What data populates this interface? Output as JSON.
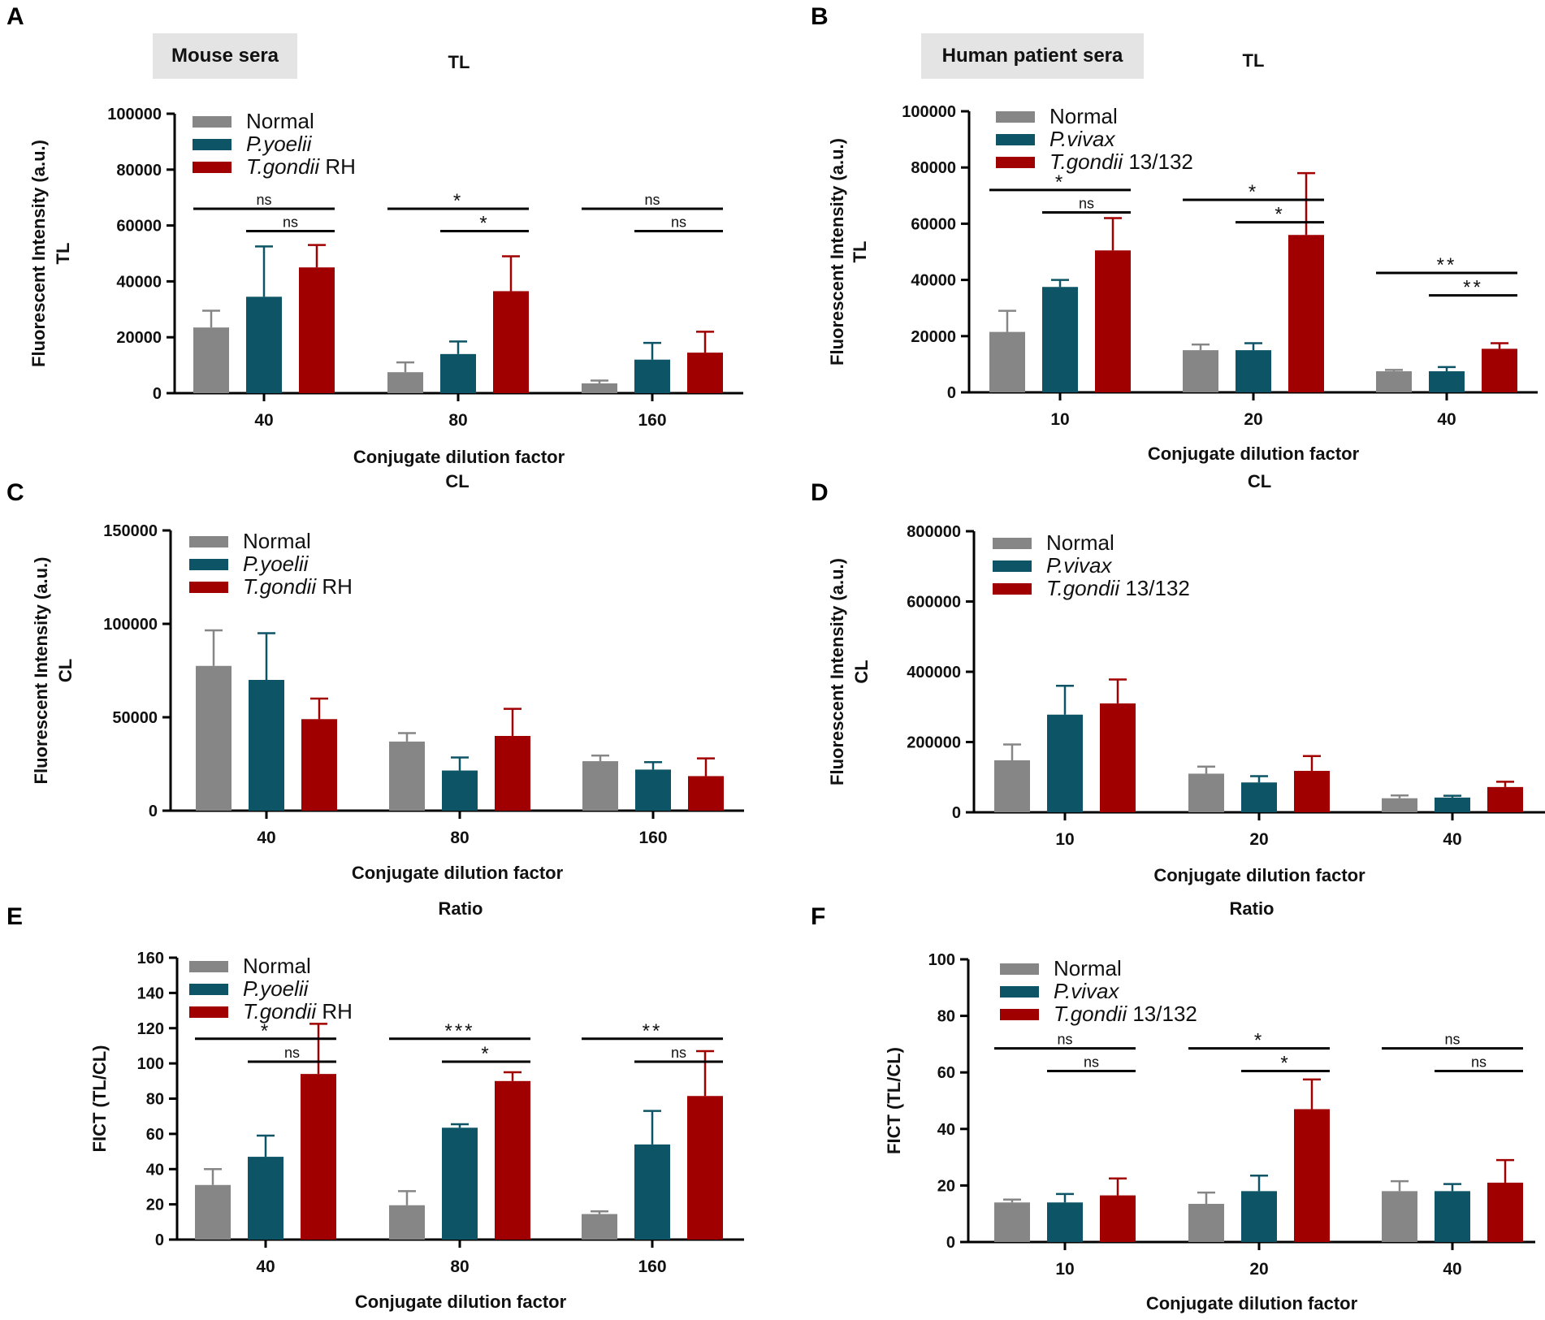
{
  "figure": {
    "group_labels": {
      "mouse": "Mouse sera",
      "human": "Human patient sera"
    }
  },
  "colors": {
    "normal": "#868686",
    "group2": "#0d5566",
    "group3": "#a00000",
    "axis": "#000000"
  },
  "chart_data": [
    {
      "panel": "A",
      "type": "bar",
      "title": "TL",
      "xlabel": "Conjugate dilution factor",
      "ylabel_line1": "Fluorescent Intensity (a.u.)",
      "ylabel_line2": "TL",
      "ylim": [
        0,
        100000
      ],
      "yticks": [
        0,
        20000,
        40000,
        60000,
        80000,
        100000
      ],
      "ytick_labels": [
        "0",
        "20000",
        "40000",
        "60000",
        "80000",
        "100000"
      ],
      "categories": [
        "40",
        "80",
        "160"
      ],
      "legend": [
        {
          "italic": "",
          "normal": "Normal"
        },
        {
          "italic": "P.yoelii",
          "normal": ""
        },
        {
          "italic": "T.gondii",
          "normal": " RH"
        }
      ],
      "series": [
        {
          "name": "Normal",
          "values": [
            23500,
            7500,
            3500
          ],
          "errors": [
            6000,
            3500,
            1000
          ]
        },
        {
          "name": "P.yoelii",
          "values": [
            34500,
            14000,
            12000
          ],
          "errors": [
            18000,
            4500,
            6000
          ]
        },
        {
          "name": "T.gondii RH",
          "values": [
            45000,
            36500,
            14500
          ],
          "errors": [
            8000,
            12500,
            7500
          ]
        }
      ],
      "significance": [
        {
          "cat": 0,
          "from": 0,
          "to": 2,
          "y": 66000,
          "label": "ns"
        },
        {
          "cat": 0,
          "from": 1,
          "to": 2,
          "y": 58000,
          "label": "ns"
        },
        {
          "cat": 1,
          "from": 0,
          "to": 2,
          "y": 66000,
          "label": "*"
        },
        {
          "cat": 1,
          "from": 1,
          "to": 2,
          "y": 58000,
          "label": "*"
        },
        {
          "cat": 2,
          "from": 0,
          "to": 2,
          "y": 66000,
          "label": "ns"
        },
        {
          "cat": 2,
          "from": 1,
          "to": 2,
          "y": 58000,
          "label": "ns"
        }
      ]
    },
    {
      "panel": "B",
      "type": "bar",
      "title": "TL",
      "xlabel": "Conjugate dilution factor",
      "ylabel_line1": "Fluorescent Intensity (a.u.)",
      "ylabel_line2": "TL",
      "ylim": [
        0,
        100000
      ],
      "yticks": [
        0,
        20000,
        40000,
        60000,
        80000,
        100000
      ],
      "ytick_labels": [
        "0",
        "20000",
        "40000",
        "60000",
        "80000",
        "100000"
      ],
      "categories": [
        "10",
        "20",
        "40"
      ],
      "legend": [
        {
          "italic": "",
          "normal": "Normal"
        },
        {
          "italic": "P.vivax",
          "normal": ""
        },
        {
          "italic": "T.gondii",
          "normal": " 13/132"
        }
      ],
      "series": [
        {
          "name": "Normal",
          "values": [
            21500,
            15000,
            7500
          ],
          "errors": [
            7500,
            2000,
            500
          ]
        },
        {
          "name": "P.vivax",
          "values": [
            37500,
            15000,
            7500
          ],
          "errors": [
            2500,
            2500,
            1500
          ]
        },
        {
          "name": "T.gondii 13/132",
          "values": [
            50500,
            56000,
            15500
          ],
          "errors": [
            11500,
            22000,
            2000
          ]
        }
      ],
      "significance": [
        {
          "cat": 0,
          "from": 0,
          "to": 2,
          "y": 72000,
          "label": "*"
        },
        {
          "cat": 0,
          "from": 1,
          "to": 2,
          "y": 64000,
          "label": "ns"
        },
        {
          "cat": 1,
          "from": 0,
          "to": 2,
          "y": 68500,
          "label": "*"
        },
        {
          "cat": 1,
          "from": 1,
          "to": 2,
          "y": 60500,
          "label": "*"
        },
        {
          "cat": 2,
          "from": 0,
          "to": 2,
          "y": 42500,
          "label": "**"
        },
        {
          "cat": 2,
          "from": 1,
          "to": 2,
          "y": 34500,
          "label": "**"
        }
      ]
    },
    {
      "panel": "C",
      "type": "bar",
      "title": "CL",
      "xlabel": "Conjugate dilution factor",
      "ylabel_line1": "Fluorescent Intensity (a.u.)",
      "ylabel_line2": "CL",
      "ylim": [
        0,
        150000
      ],
      "yticks": [
        0,
        50000,
        100000,
        150000
      ],
      "ytick_labels": [
        "0",
        "50000",
        "100000",
        "150000"
      ],
      "categories": [
        "40",
        "80",
        "160"
      ],
      "legend": [
        {
          "italic": "",
          "normal": "Normal"
        },
        {
          "italic": "P.yoelii",
          "normal": ""
        },
        {
          "italic": "T.gondii",
          "normal": " RH"
        }
      ],
      "series": [
        {
          "name": "Normal",
          "values": [
            77500,
            37000,
            26500
          ],
          "errors": [
            19000,
            4500,
            3000
          ]
        },
        {
          "name": "P.yoelii",
          "values": [
            70000,
            21500,
            22000
          ],
          "errors": [
            25000,
            7000,
            4000
          ]
        },
        {
          "name": "T.gondii RH",
          "values": [
            49000,
            40000,
            18500
          ],
          "errors": [
            11000,
            14500,
            9500
          ]
        }
      ],
      "significance": []
    },
    {
      "panel": "D",
      "type": "bar",
      "title": "CL",
      "xlabel": "Conjugate dilution factor",
      "ylabel_line1": "Fluorescent Intensity (a.u.)",
      "ylabel_line2": "CL",
      "ylim": [
        0,
        800000
      ],
      "yticks": [
        0,
        200000,
        400000,
        600000,
        800000
      ],
      "ytick_labels": [
        "0",
        "200000",
        "400000",
        "600000",
        "800000"
      ],
      "categories": [
        "10",
        "20",
        "40"
      ],
      "legend": [
        {
          "italic": "",
          "normal": "Normal"
        },
        {
          "italic": "P.vivax",
          "normal": ""
        },
        {
          "italic": "T.gondii",
          "normal": " 13/132"
        }
      ],
      "series": [
        {
          "name": "Normal",
          "values": [
            148000,
            110000,
            40000
          ],
          "errors": [
            45000,
            20000,
            8000
          ]
        },
        {
          "name": "P.vivax",
          "values": [
            278000,
            85000,
            42000
          ],
          "errors": [
            82000,
            18000,
            5000
          ]
        },
        {
          "name": "T.gondii 13/132",
          "values": [
            310000,
            118000,
            72000
          ],
          "errors": [
            68000,
            42000,
            15000
          ]
        }
      ],
      "significance": []
    },
    {
      "panel": "E",
      "type": "bar",
      "title": "Ratio",
      "xlabel": "Conjugate dilution factor",
      "ylabel_line1": "FICT (TL/CL)",
      "ylabel_line2": "",
      "ylim": [
        0,
        160
      ],
      "yticks": [
        0,
        20,
        40,
        60,
        80,
        100,
        120,
        140,
        160
      ],
      "ytick_labels": [
        "0",
        "20",
        "40",
        "60",
        "80",
        "100",
        "120",
        "140",
        "160"
      ],
      "categories": [
        "40",
        "80",
        "160"
      ],
      "legend": [
        {
          "italic": "",
          "normal": "Normal"
        },
        {
          "italic": "P.yoelii",
          "normal": ""
        },
        {
          "italic": "T.gondii",
          "normal": " RH"
        }
      ],
      "series": [
        {
          "name": "Normal",
          "values": [
            31,
            19.5,
            14.5
          ],
          "errors": [
            9,
            8,
            1.5
          ]
        },
        {
          "name": "P.yoelii",
          "values": [
            47,
            63.5,
            54
          ],
          "errors": [
            12,
            2,
            19
          ]
        },
        {
          "name": "T.gondii RH",
          "values": [
            94,
            90,
            81.5
          ],
          "errors": [
            28.5,
            5,
            25.5
          ]
        }
      ],
      "significance": [
        {
          "cat": 0,
          "from": 0,
          "to": 2,
          "y": 114,
          "label": "*"
        },
        {
          "cat": 0,
          "from": 1,
          "to": 2,
          "y": 101,
          "label": "ns"
        },
        {
          "cat": 1,
          "from": 0,
          "to": 2,
          "y": 114,
          "label": "***"
        },
        {
          "cat": 1,
          "from": 1,
          "to": 2,
          "y": 101,
          "label": "*"
        },
        {
          "cat": 2,
          "from": 0,
          "to": 2,
          "y": 114,
          "label": "**"
        },
        {
          "cat": 2,
          "from": 1,
          "to": 2,
          "y": 101,
          "label": "ns"
        }
      ]
    },
    {
      "panel": "F",
      "type": "bar",
      "title": "Ratio",
      "xlabel": "Conjugate dilution factor",
      "ylabel_line1": "FICT (TL/CL)",
      "ylabel_line2": "",
      "ylim": [
        0,
        100
      ],
      "yticks": [
        0,
        20,
        40,
        60,
        80,
        100
      ],
      "ytick_labels": [
        "0",
        "20",
        "40",
        "60",
        "80",
        "100"
      ],
      "categories": [
        "10",
        "20",
        "40"
      ],
      "legend": [
        {
          "italic": "",
          "normal": "Normal"
        },
        {
          "italic": "P.vivax",
          "normal": ""
        },
        {
          "italic": "T.gondii",
          "normal": " 13/132"
        }
      ],
      "series": [
        {
          "name": "Normal",
          "values": [
            14,
            13.5,
            18
          ],
          "errors": [
            1,
            4,
            3.5
          ]
        },
        {
          "name": "P.vivax",
          "values": [
            14,
            18,
            18
          ],
          "errors": [
            3,
            5.5,
            2.5
          ]
        },
        {
          "name": "T.gondii 13/132",
          "values": [
            16.5,
            47,
            21
          ],
          "errors": [
            6,
            10.5,
            8
          ]
        }
      ],
      "significance": [
        {
          "cat": 0,
          "from": 0,
          "to": 2,
          "y": 68.5,
          "label": "ns"
        },
        {
          "cat": 0,
          "from": 1,
          "to": 2,
          "y": 60.5,
          "label": "ns"
        },
        {
          "cat": 1,
          "from": 0,
          "to": 2,
          "y": 68.5,
          "label": "*"
        },
        {
          "cat": 1,
          "from": 1,
          "to": 2,
          "y": 60.5,
          "label": "*"
        },
        {
          "cat": 2,
          "from": 0,
          "to": 2,
          "y": 68.5,
          "label": "ns"
        },
        {
          "cat": 2,
          "from": 1,
          "to": 2,
          "y": 60.5,
          "label": "ns"
        }
      ]
    }
  ]
}
